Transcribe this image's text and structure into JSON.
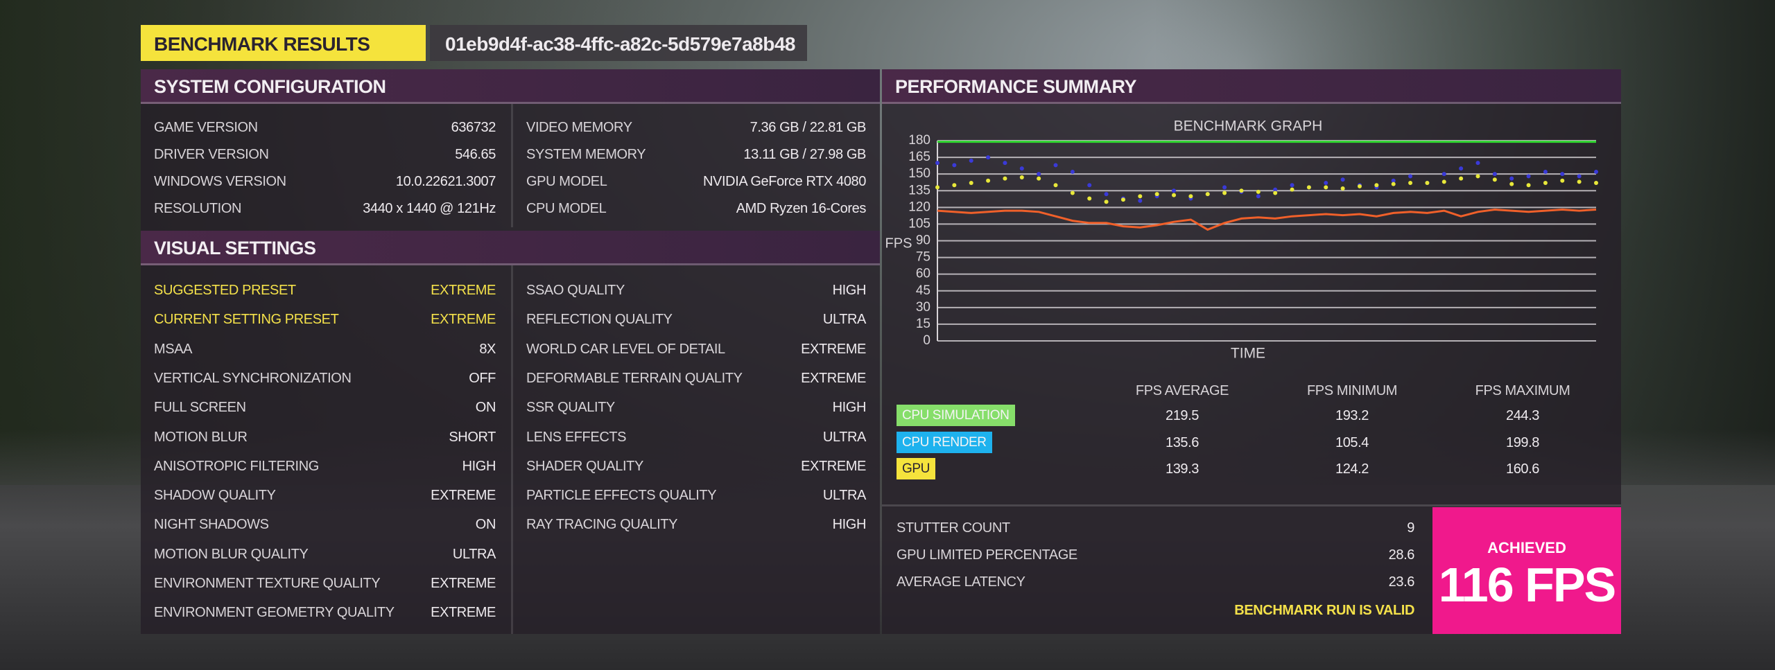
{
  "header": {
    "title": "BENCHMARK RESULTS",
    "run_id": "01eb9d4f-ac38-4ffc-a82c-5d579e7a8b48"
  },
  "system_configuration": {
    "title": "SYSTEM CONFIGURATION",
    "left": [
      [
        "GAME VERSION",
        "636732"
      ],
      [
        "DRIVER VERSION",
        "546.65"
      ],
      [
        "WINDOWS VERSION",
        "10.0.22621.3007"
      ],
      [
        "RESOLUTION",
        "3440 x 1440 @ 121Hz"
      ]
    ],
    "right": [
      [
        "VIDEO MEMORY",
        "7.36 GB / 22.81 GB"
      ],
      [
        "SYSTEM MEMORY",
        "13.11 GB / 27.98 GB"
      ],
      [
        "GPU MODEL",
        "NVIDIA GeForce RTX 4080"
      ],
      [
        "CPU MODEL",
        "AMD Ryzen 16-Cores"
      ]
    ]
  },
  "visual_settings": {
    "title": "VISUAL SETTINGS",
    "left": [
      [
        "SUGGESTED PRESET",
        "EXTREME"
      ],
      [
        "CURRENT SETTING PRESET",
        "EXTREME"
      ],
      [
        "MSAA",
        "8X"
      ],
      [
        "VERTICAL SYNCHRONIZATION",
        "OFF"
      ],
      [
        "FULL SCREEN",
        "ON"
      ],
      [
        "MOTION BLUR",
        "SHORT"
      ],
      [
        "ANISOTROPIC FILTERING",
        "HIGH"
      ],
      [
        "SHADOW QUALITY",
        "EXTREME"
      ],
      [
        "NIGHT SHADOWS",
        "ON"
      ],
      [
        "MOTION BLUR QUALITY",
        "ULTRA"
      ],
      [
        "ENVIRONMENT TEXTURE QUALITY",
        "EXTREME"
      ],
      [
        "ENVIRONMENT GEOMETRY QUALITY",
        "EXTREME"
      ]
    ],
    "right": [
      [
        "SSAO QUALITY",
        "HIGH"
      ],
      [
        "REFLECTION QUALITY",
        "ULTRA"
      ],
      [
        "WORLD CAR LEVEL OF DETAIL",
        "EXTREME"
      ],
      [
        "DEFORMABLE TERRAIN QUALITY",
        "EXTREME"
      ],
      [
        "SSR QUALITY",
        "HIGH"
      ],
      [
        "LENS EFFECTS",
        "ULTRA"
      ],
      [
        "SHADER QUALITY",
        "EXTREME"
      ],
      [
        "PARTICLE EFFECTS QUALITY",
        "ULTRA"
      ],
      [
        "RAY TRACING QUALITY",
        "HIGH"
      ]
    ],
    "highlighted_rows": 2
  },
  "performance_summary": {
    "title": "PERFORMANCE SUMMARY",
    "stats": {
      "columns": [
        "FPS AVERAGE",
        "FPS MINIMUM",
        "FPS MAXIMUM"
      ],
      "rows": [
        {
          "label": "CPU SIMULATION",
          "color": "#86de6a",
          "values": [
            "219.5",
            "193.2",
            "244.3"
          ]
        },
        {
          "label": "CPU RENDER",
          "color": "#1eb2ee",
          "values": [
            "135.6",
            "105.4",
            "199.8"
          ]
        },
        {
          "label": "GPU",
          "color": "#f5e33c",
          "values": [
            "139.3",
            "124.2",
            "160.6"
          ]
        }
      ]
    },
    "metrics": [
      [
        "STUTTER COUNT",
        "9"
      ],
      [
        "GPU LIMITED PERCENTAGE",
        "28.6"
      ],
      [
        "AVERAGE LATENCY",
        "23.6"
      ]
    ],
    "status": "BENCHMARK RUN IS VALID",
    "achieved": {
      "label": "ACHIEVED",
      "value": "116 FPS"
    }
  },
  "chart_data": {
    "type": "line",
    "title": "BENCHMARK GRAPH",
    "x_label": "TIME",
    "y_label": "FPS",
    "ylim": [
      0,
      180
    ],
    "yticks": [
      0,
      15,
      30,
      45,
      60,
      75,
      90,
      105,
      120,
      135,
      150,
      165,
      180
    ],
    "grid": true,
    "series": [
      {
        "color": "#2fd62f",
        "mode": "line",
        "values": [
          179,
          179,
          179,
          179,
          179,
          179,
          179,
          179,
          179,
          179,
          179,
          179,
          179,
          179,
          179,
          179,
          179,
          179,
          179,
          179,
          179,
          179,
          179,
          179,
          179,
          179,
          179,
          179,
          179,
          179,
          179,
          179,
          179,
          179,
          179,
          179,
          179,
          179,
          179,
          179
        ]
      },
      {
        "color": "#3a3ad8",
        "mode": "points",
        "values": [
          160,
          158,
          162,
          165,
          160,
          155,
          150,
          158,
          152,
          140,
          132,
          128,
          126,
          130,
          135,
          128,
          132,
          138,
          134,
          130,
          136,
          140,
          138,
          142,
          145,
          140,
          138,
          144,
          148,
          142,
          150,
          155,
          160,
          150,
          146,
          148,
          152,
          150,
          148,
          152
        ]
      },
      {
        "color": "#e8e83a",
        "mode": "points",
        "values": [
          138,
          140,
          142,
          144,
          146,
          147,
          146,
          140,
          133,
          128,
          125,
          127,
          130,
          132,
          131,
          130,
          132,
          133,
          135,
          134,
          133,
          136,
          138,
          138,
          137,
          139,
          140,
          141,
          142,
          142,
          143,
          146,
          148,
          145,
          141,
          140,
          142,
          144,
          143,
          142
        ]
      },
      {
        "color": "#f0602a",
        "mode": "line",
        "values": [
          117,
          116,
          115,
          116,
          117,
          117,
          116,
          112,
          108,
          106,
          106,
          103,
          102,
          104,
          107,
          109,
          100,
          106,
          110,
          111,
          110,
          112,
          113,
          114,
          113,
          114,
          112,
          115,
          116,
          115,
          117,
          112,
          116,
          118,
          117,
          116,
          117,
          118,
          117,
          118
        ]
      }
    ]
  }
}
